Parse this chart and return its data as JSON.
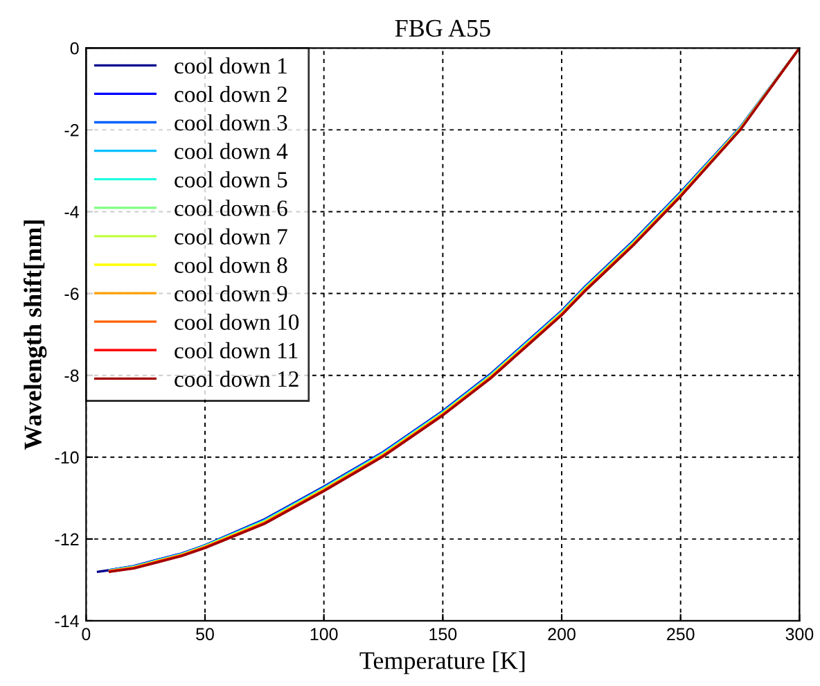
{
  "chart_data": {
    "type": "line",
    "title": "FBG A55",
    "xlabel": "Temperature [K]",
    "ylabel": "Wavelength shift[nm]",
    "xlim": [
      0,
      300
    ],
    "ylim": [
      -14,
      0
    ],
    "xticks": [
      0,
      50,
      100,
      150,
      200,
      250,
      300
    ],
    "yticks": [
      -14,
      -12,
      -10,
      -8,
      -6,
      -4,
      -2,
      0
    ],
    "grid": true,
    "legend": "top left",
    "line_style": "solid",
    "marker": "none",
    "x": [
      5,
      10,
      20,
      30,
      40,
      50,
      75,
      100,
      125,
      150,
      170,
      200,
      210,
      230,
      250,
      275,
      300
    ],
    "series": [
      {
        "name": "cool down 1",
        "color": "#00008f",
        "values": [
          -12.8,
          -12.76,
          -12.66,
          -12.51,
          -12.36,
          -12.15,
          -11.52,
          -10.72,
          -9.87,
          -8.87,
          -7.97,
          -6.42,
          -5.82,
          -4.72,
          -3.52,
          -1.94,
          0
        ]
      },
      {
        "name": "cool down 2",
        "color": "#0000ff",
        "values": [
          null,
          -12.76,
          -12.67,
          -12.51,
          -12.36,
          -12.16,
          -11.53,
          -10.73,
          -9.88,
          -8.88,
          -7.98,
          -6.43,
          -5.83,
          -4.73,
          -3.53,
          -1.95,
          0
        ]
      },
      {
        "name": "cool down 3",
        "color": "#0060ff",
        "values": [
          null,
          -12.76,
          -12.67,
          -12.52,
          -12.37,
          -12.16,
          -11.54,
          -10.74,
          -9.89,
          -8.89,
          -7.99,
          -6.44,
          -5.84,
          -4.74,
          -3.54,
          -1.95,
          0
        ]
      },
      {
        "name": "cool down 4",
        "color": "#00bfff",
        "values": [
          null,
          -12.77,
          -12.68,
          -12.52,
          -12.37,
          -12.17,
          -11.55,
          -10.75,
          -9.9,
          -8.9,
          -8.0,
          -6.45,
          -5.85,
          -4.75,
          -3.55,
          -1.96,
          0
        ]
      },
      {
        "name": "cool down 5",
        "color": "#20ffdf",
        "values": [
          null,
          -12.77,
          -12.68,
          -12.53,
          -12.38,
          -12.17,
          -11.56,
          -10.76,
          -9.91,
          -8.91,
          -8.01,
          -6.46,
          -5.86,
          -4.76,
          -3.56,
          -1.96,
          0
        ]
      },
      {
        "name": "cool down 6",
        "color": "#80ff80",
        "values": [
          null,
          -12.77,
          -12.69,
          -12.53,
          -12.38,
          -12.18,
          -11.57,
          -10.77,
          -9.92,
          -8.92,
          -8.02,
          -6.47,
          -5.87,
          -4.77,
          -3.57,
          -1.97,
          0
        ]
      },
      {
        "name": "cool down 7",
        "color": "#bfff40",
        "values": [
          null,
          -12.78,
          -12.69,
          -12.54,
          -12.39,
          -12.18,
          -11.58,
          -10.78,
          -9.93,
          -8.93,
          -8.03,
          -6.48,
          -5.88,
          -4.78,
          -3.58,
          -1.98,
          0
        ]
      },
      {
        "name": "cool down 8",
        "color": "#ffff00",
        "values": [
          null,
          -12.78,
          -12.7,
          -12.54,
          -12.39,
          -12.19,
          -11.59,
          -10.79,
          -9.94,
          -8.94,
          -8.04,
          -6.49,
          -5.89,
          -4.79,
          -3.59,
          -1.98,
          0
        ]
      },
      {
        "name": "cool down 9",
        "color": "#ffa000",
        "values": [
          null,
          -12.78,
          -12.7,
          -12.55,
          -12.4,
          -12.2,
          -11.6,
          -10.8,
          -9.95,
          -8.95,
          -8.05,
          -6.5,
          -5.9,
          -4.8,
          -3.6,
          -1.99,
          0
        ]
      },
      {
        "name": "cool down 10",
        "color": "#ff6000",
        "values": [
          null,
          -12.79,
          -12.71,
          -12.55,
          -12.4,
          -12.2,
          -11.61,
          -10.81,
          -9.96,
          -8.96,
          -8.06,
          -6.51,
          -5.91,
          -4.81,
          -3.61,
          -2.0,
          0
        ]
      },
      {
        "name": "cool down 11",
        "color": "#ff0000",
        "values": [
          null,
          -12.79,
          -12.71,
          -12.56,
          -12.41,
          -12.21,
          -11.62,
          -10.82,
          -9.97,
          -8.97,
          -8.07,
          -6.52,
          -5.92,
          -4.82,
          -3.62,
          -2.0,
          0
        ]
      },
      {
        "name": "cool down 12",
        "color": "#a00000",
        "values": [
          null,
          -12.8,
          -12.72,
          -12.57,
          -12.42,
          -12.22,
          -11.63,
          -10.83,
          -9.98,
          -8.98,
          -8.08,
          -6.53,
          -5.93,
          -4.83,
          -3.63,
          -2.01,
          0
        ]
      }
    ]
  }
}
